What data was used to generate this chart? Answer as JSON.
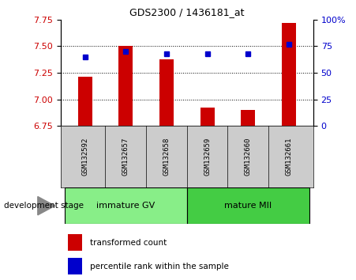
{
  "title": "GDS2300 / 1436181_at",
  "samples": [
    "GSM132592",
    "GSM132657",
    "GSM132658",
    "GSM132659",
    "GSM132660",
    "GSM132661"
  ],
  "bar_values": [
    7.21,
    7.5,
    7.38,
    6.92,
    6.9,
    7.72
  ],
  "percentile_values": [
    65,
    70,
    68,
    68,
    68,
    77
  ],
  "ylim_left": [
    6.75,
    7.75
  ],
  "ylim_right": [
    0,
    100
  ],
  "yticks_left": [
    6.75,
    7.0,
    7.25,
    7.5,
    7.75
  ],
  "yticks_right": [
    0,
    25,
    50,
    75,
    100
  ],
  "bar_color": "#cc0000",
  "dot_color": "#0000cc",
  "bar_bottom": 6.75,
  "groups": [
    {
      "label": "immature GV",
      "indices": [
        0,
        1,
        2
      ],
      "color": "#88ee88"
    },
    {
      "label": "mature MII",
      "indices": [
        3,
        4,
        5
      ],
      "color": "#44cc44"
    }
  ],
  "stage_label": "development stage",
  "legend_bar_label": "transformed count",
  "legend_dot_label": "percentile rank within the sample",
  "plot_bg": "#ffffff",
  "tick_color_left": "#cc0000",
  "tick_color_right": "#0000cc",
  "sample_bg": "#cccccc",
  "grid_yticks": [
    7.0,
    7.25,
    7.5
  ]
}
